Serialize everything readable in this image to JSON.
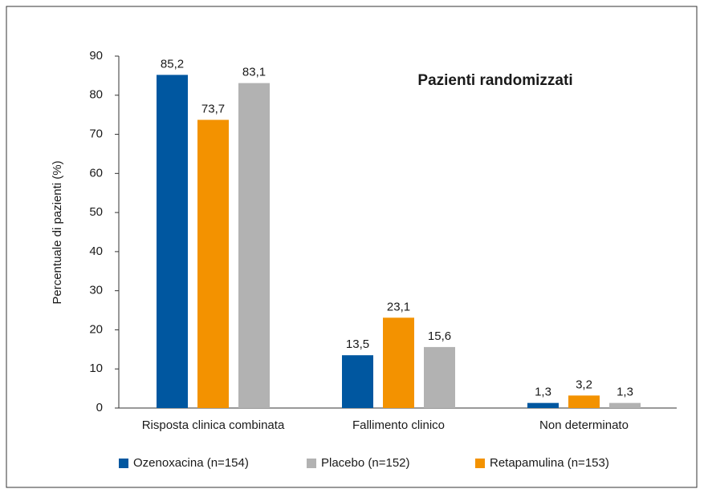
{
  "chart_data": {
    "type": "bar",
    "title": "Pazienti randomizzati",
    "y_label": "Percentuale di pazienti (%)",
    "categories": [
      "Risposta clinica combinata",
      "Fallimento clinico",
      "Non determinato"
    ],
    "series": [
      {
        "name": "Ozenoxacina (n=154)",
        "color": "#0057a0",
        "values": [
          85.2,
          13.5,
          1.3
        ],
        "value_labels": [
          "85,2",
          "13,5",
          "1,3"
        ]
      },
      {
        "name": "Retapamulina (n=153)",
        "color": "#f39200",
        "values": [
          73.7,
          23.1,
          3.2
        ],
        "value_labels": [
          "73,7",
          "23,1",
          "3,2"
        ]
      },
      {
        "name": "Placebo (n=152)",
        "color": "#b2b2b2",
        "values": [
          83.1,
          15.6,
          1.3
        ],
        "value_labels": [
          "83,1",
          "15,6",
          "1,3"
        ]
      }
    ],
    "ylim": [
      0,
      90
    ],
    "yticks": [
      0,
      10,
      20,
      30,
      40,
      50,
      60,
      70,
      80,
      90
    ],
    "grid": false,
    "legend": "bottom"
  }
}
